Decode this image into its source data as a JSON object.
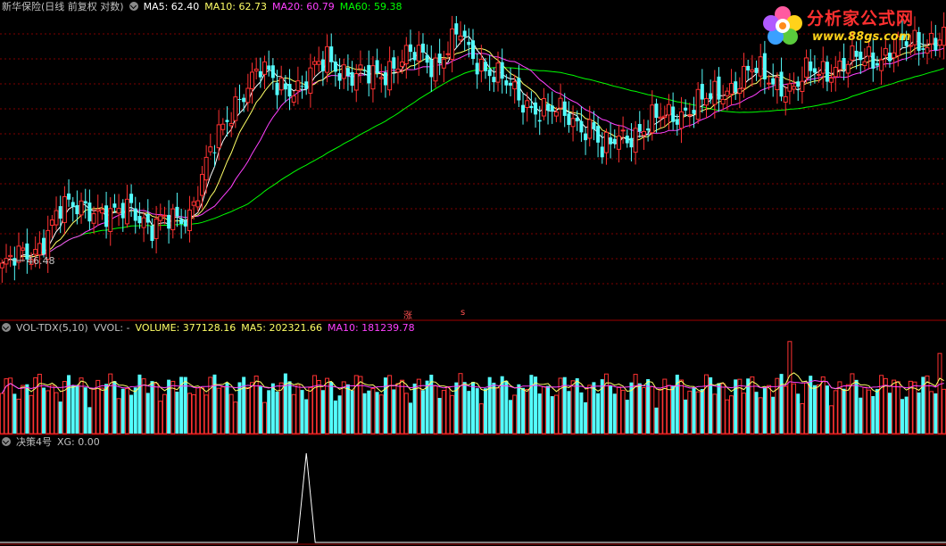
{
  "main": {
    "security": "新华保险(日线 前复权 对数)",
    "ma5": "MA5: 62.40",
    "ma10": "MA10: 62.73",
    "ma20": "MA20: 60.79",
    "ma60": "MA60: 59.38",
    "low_label": "46.48",
    "marker_up": "涨",
    "marker_s": "s"
  },
  "volume": {
    "title": "VOL-TDX(5,10)",
    "vvol": "VVOL: -",
    "volume": "VOLUME: 377128.16",
    "ma5": "MA5: 202321.66",
    "ma10": "MA10: 181239.78"
  },
  "indicator": {
    "title": "决策4号",
    "xg": "XG: 0.00"
  },
  "watermark": {
    "name": "分析家公式网",
    "url": "www.88gs.com"
  },
  "colors": {
    "up": "#ff3232",
    "down": "#54fcfc",
    "ma5": "#ffffff",
    "ma10": "#ffff66",
    "ma20": "#ff40ff",
    "ma60": "#00ff00",
    "grid": "#800000",
    "label_yellow": "#ffff66",
    "label_magenta": "#ff40ff",
    "label_green": "#00ff00"
  },
  "chart_data": {
    "type": "candlestick",
    "series_names": [
      "MA5",
      "MA10",
      "MA20",
      "MA60"
    ],
    "indicator_signal_index": 58,
    "price_range": [
      44,
      75
    ]
  }
}
